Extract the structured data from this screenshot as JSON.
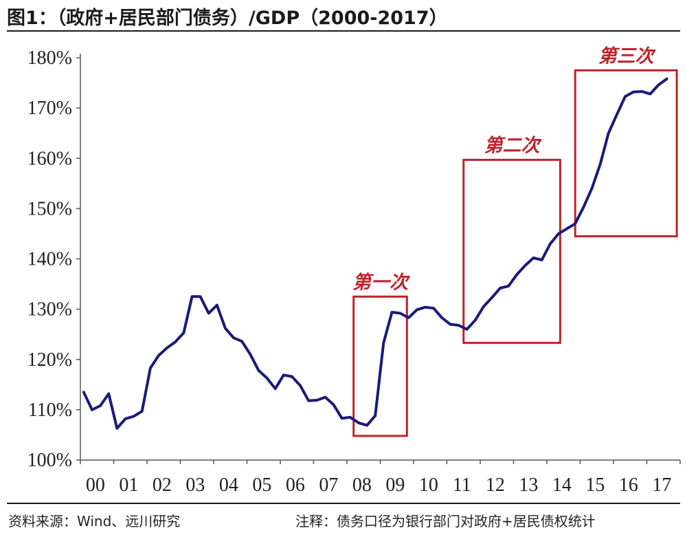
{
  "title": "图1：（政府+居民部门债务）/GDP（2000-2017）",
  "source": "资料来源：Wind、远川研究",
  "note": "注释：债务口径为银行部门对政府+居民债权统计",
  "colors": {
    "line": "#1b1a7a",
    "annotation": "#c0222a",
    "axis": "#555555"
  },
  "chart_data": {
    "type": "line",
    "title": "（政府+居民部门债务）/GDP（2000-2017）",
    "xlabel": "",
    "ylabel": "",
    "ylim": [
      100,
      180
    ],
    "y_ticks": [
      100,
      110,
      120,
      130,
      140,
      150,
      160,
      170,
      180
    ],
    "y_tick_labels": [
      "100%",
      "110%",
      "120%",
      "130%",
      "140%",
      "150%",
      "160%",
      "170%",
      "180%"
    ],
    "x_tick_labels": [
      "00",
      "01",
      "02",
      "03",
      "04",
      "05",
      "06",
      "07",
      "08",
      "09",
      "10",
      "11",
      "12",
      "13",
      "14",
      "15",
      "16",
      "17"
    ],
    "xlim": [
      0,
      18
    ],
    "grid": false,
    "series": [
      {
        "x": [
          0.1,
          0.35,
          0.6,
          0.85,
          1.1,
          1.35,
          1.6,
          1.85,
          2.1,
          2.35,
          2.6,
          2.85,
          3.1,
          3.35,
          3.6,
          3.85,
          4.1,
          4.35,
          4.6,
          4.85,
          5.1,
          5.35,
          5.6,
          5.85,
          6.1,
          6.35,
          6.6,
          6.85,
          7.1,
          7.35,
          7.6,
          7.85,
          8.1,
          8.35,
          8.6,
          8.85,
          9.1,
          9.35,
          9.6,
          9.85,
          10.1,
          10.35,
          10.6,
          10.85,
          11.1,
          11.35,
          11.6,
          11.85,
          12.1,
          12.35,
          12.6,
          12.85,
          13.1,
          13.35,
          13.6,
          13.85,
          14.1,
          14.35,
          14.6,
          14.85,
          15.1,
          15.35,
          15.6,
          15.85,
          16.1,
          16.35,
          16.6,
          16.85,
          17.1,
          17.35,
          17.6
        ],
        "values": [
          113.5,
          110.0,
          110.8,
          113.2,
          106.3,
          108.2,
          108.7,
          109.7,
          118.3,
          120.8,
          122.3,
          123.5,
          125.3,
          132.5,
          132.5,
          129.2,
          130.8,
          126.2,
          124.3,
          123.6,
          121.0,
          117.8,
          116.3,
          114.2,
          116.9,
          116.6,
          114.8,
          111.8,
          111.9,
          112.5,
          111.0,
          108.3,
          108.5,
          107.4,
          106.9,
          108.8,
          123.3,
          129.4,
          129.2,
          128.3,
          129.9,
          130.4,
          130.2,
          128.3,
          127.0,
          126.8,
          126.0,
          127.8,
          130.5,
          132.3,
          134.2,
          134.6,
          136.9,
          138.7,
          140.2,
          139.8,
          143.0,
          145.0,
          146.0,
          147.0,
          150.3,
          154.0,
          158.8,
          165.0,
          168.7,
          172.3,
          173.2,
          173.3,
          172.8,
          174.6,
          175.8
        ]
      }
    ],
    "annotations": [
      {
        "label": "第一次",
        "x_range": [
          8.2,
          9.8
        ],
        "y_range": [
          104.8,
          132.5
        ]
      },
      {
        "label": "第二次",
        "x_range": [
          11.5,
          14.4
        ],
        "y_range": [
          123.3,
          159.7
        ]
      },
      {
        "label": "第三次",
        "x_range": [
          14.85,
          17.9
        ],
        "y_range": [
          144.5,
          177.5
        ]
      }
    ]
  }
}
